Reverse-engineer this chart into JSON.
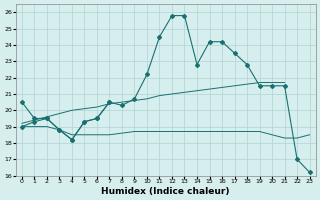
{
  "xlabel": "Humidex (Indice chaleur)",
  "background_color": "#d6eeee",
  "grid_color": "#b0d4d4",
  "line_color": "#1a7070",
  "xticks": [
    0,
    1,
    2,
    3,
    4,
    5,
    6,
    7,
    8,
    9,
    10,
    11,
    12,
    13,
    14,
    15,
    16,
    17,
    18,
    19,
    20,
    21,
    22,
    23
  ],
  "yticks": [
    16,
    17,
    18,
    19,
    20,
    21,
    22,
    23,
    24,
    25,
    26
  ],
  "xlim": [
    -0.5,
    23.5
  ],
  "ylim": [
    16,
    26.5
  ],
  "series_main": [
    20.5,
    19.5,
    19.5,
    18.8,
    18.2,
    19.3,
    19.5,
    20.5,
    20.3,
    20.7,
    22.2,
    24.5,
    25.8,
    25.8,
    22.8,
    24.2,
    24.2,
    23.5,
    22.8,
    21.5,
    21.5,
    21.5,
    17.0,
    16.2
  ],
  "series_rising": [
    19.2,
    19.4,
    19.6,
    19.8,
    20.0,
    20.1,
    20.2,
    20.4,
    20.5,
    20.6,
    20.7,
    20.9,
    21.0,
    21.1,
    21.2,
    21.3,
    21.4,
    21.5,
    21.6,
    21.7,
    21.7,
    21.7
  ],
  "series_flat": [
    19.0,
    19.0,
    19.0,
    18.8,
    18.5,
    18.5,
    18.5,
    18.5,
    18.6,
    18.7,
    18.7,
    18.7,
    18.7,
    18.7,
    18.7,
    18.7,
    18.7,
    18.7,
    18.7,
    18.7,
    18.5,
    18.3,
    18.3,
    18.5
  ],
  "series_short": [
    19.0,
    19.3,
    19.5,
    18.8,
    18.2,
    19.3,
    19.5,
    20.5
  ]
}
